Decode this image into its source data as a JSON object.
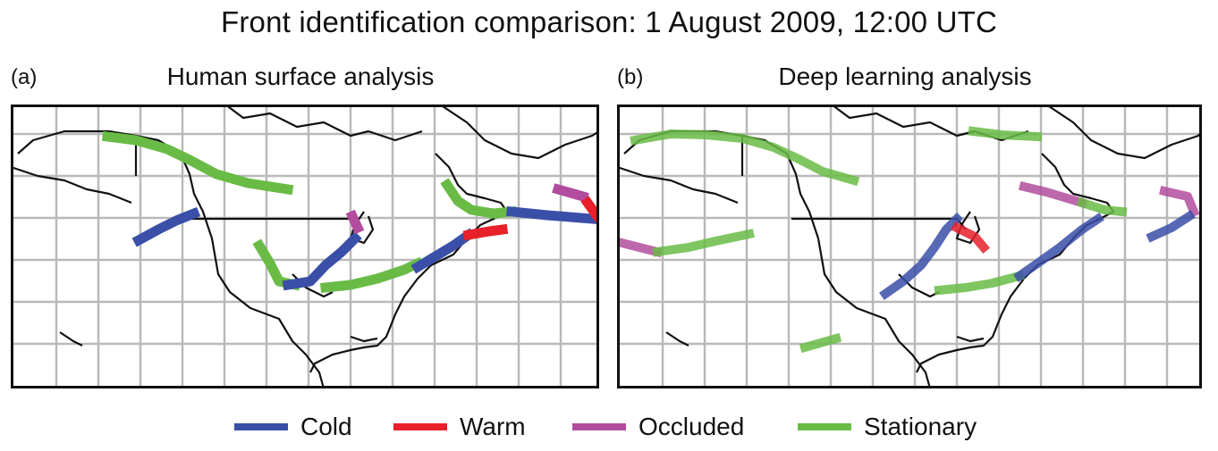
{
  "title": "Front identification comparison: 1 August 2009, 12:00 UTC",
  "panels": [
    {
      "letter": "(a)",
      "title": "Human surface analysis"
    },
    {
      "letter": "(b)",
      "title": "Deep learning analysis"
    }
  ],
  "legend": [
    {
      "label": "Cold",
      "color": "#3a4fa8"
    },
    {
      "label": "Warm",
      "color": "#e8202a"
    },
    {
      "label": "Occluded",
      "color": "#b24c9e"
    },
    {
      "label": "Stationary",
      "color": "#69bb45"
    }
  ]
}
